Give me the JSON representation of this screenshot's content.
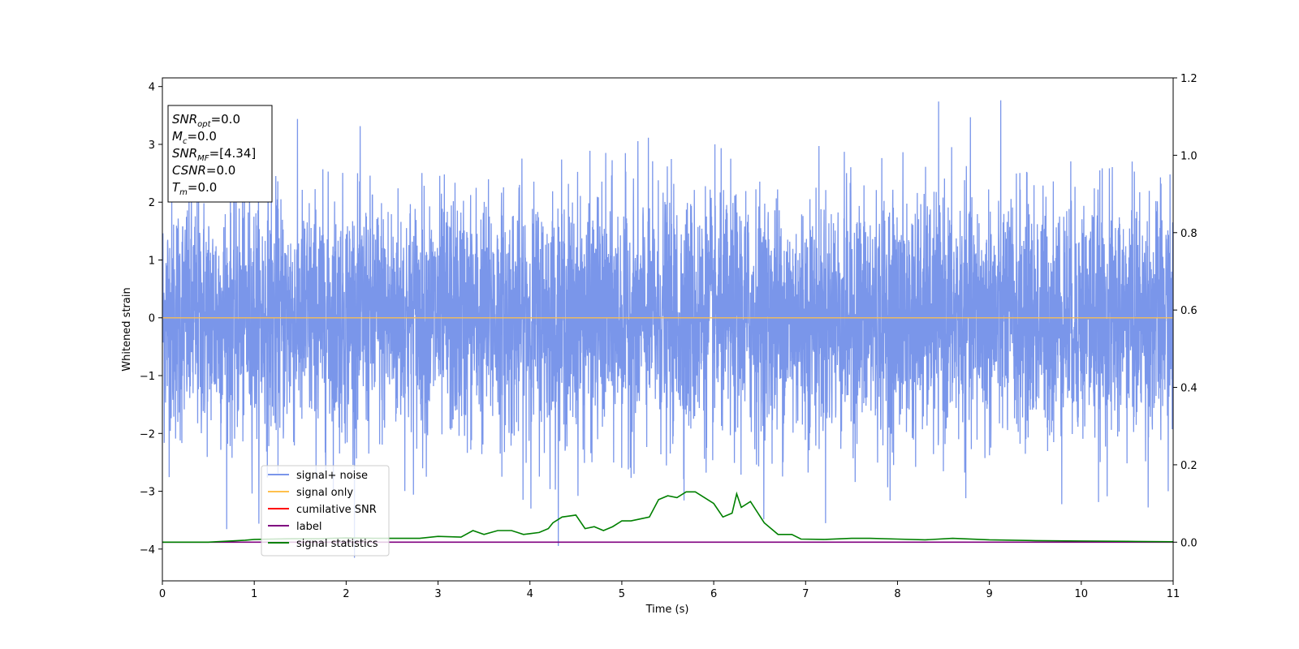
{
  "chart_data": {
    "type": "line",
    "xlabel": "Time (s)",
    "ylabel": "Whitened strain",
    "xlim": [
      0,
      11
    ],
    "ylim": [
      -4.55,
      4.15
    ],
    "y2lim": [
      -0.1,
      1.2
    ],
    "x_ticks": [
      "0",
      "1",
      "2",
      "3",
      "4",
      "5",
      "6",
      "7",
      "8",
      "9",
      "10",
      "11"
    ],
    "y_ticks": [
      "4",
      "3",
      "2",
      "1",
      "0",
      "−1",
      "−2",
      "−3",
      "−4"
    ],
    "y2_ticks": [
      "1.2",
      "1.0",
      "0.8",
      "0.6",
      "0.4",
      "0.2",
      "0.0"
    ],
    "grid": false,
    "legend_position": "lower-left",
    "legend": [
      {
        "label": "signal+ noise",
        "color": "#4169e1"
      },
      {
        "label": "signal only",
        "color": "#ffc04c"
      },
      {
        "label": "cumilative SNR",
        "color": "#ff0000"
      },
      {
        "label": "label",
        "color": "#800080"
      },
      {
        "label": "signal statistics",
        "color": "#008000"
      }
    ],
    "info_box": {
      "lines": [
        {
          "var": "SNR",
          "sub": "opt",
          "value": "=0.0"
        },
        {
          "var": "M",
          "sub": "c",
          "value": "=0.0"
        },
        {
          "var": "SNR",
          "sub": "MF",
          "value": "=[4.34]"
        },
        {
          "var": "CSNR",
          "sub": "",
          "value": "=0.0"
        },
        {
          "var": "T",
          "sub": "m",
          "value": "=0.0"
        }
      ]
    },
    "series": [
      {
        "name": "signal+ noise",
        "axis": "left",
        "color": "#4169e1",
        "description": "noise",
        "envelope_max": 3.77,
        "envelope_min": -4.15
      },
      {
        "name": "signal only",
        "axis": "left",
        "color": "#ffc04c",
        "x": [
          0,
          11
        ],
        "y": [
          0,
          0
        ]
      },
      {
        "name": "label",
        "axis": "right",
        "color": "#800080",
        "x": [
          0,
          11
        ],
        "y": [
          0,
          0
        ]
      },
      {
        "name": "signal statistics",
        "axis": "right",
        "color": "#008000",
        "x": [
          0,
          0.5,
          0.9,
          1.0,
          1.4,
          1.7,
          2.0,
          2.3,
          2.55,
          2.8,
          3.0,
          3.25,
          3.38,
          3.5,
          3.65,
          3.8,
          3.93,
          4.0,
          4.1,
          4.2,
          4.25,
          4.35,
          4.5,
          4.6,
          4.7,
          4.8,
          4.9,
          5.0,
          5.1,
          5.2,
          5.3,
          5.4,
          5.5,
          5.6,
          5.7,
          5.8,
          5.9,
          6.0,
          6.1,
          6.2,
          6.25,
          6.3,
          6.4,
          6.55,
          6.7,
          6.85,
          6.95,
          7.2,
          7.5,
          7.7,
          8.0,
          8.3,
          8.6,
          9.0,
          9.5,
          10.0,
          10.5,
          11.0
        ],
        "y": [
          0.0,
          0.0,
          0.005,
          0.007,
          0.009,
          0.009,
          0.011,
          0.01,
          0.01,
          0.01,
          0.015,
          0.013,
          0.03,
          0.02,
          0.03,
          0.03,
          0.02,
          0.022,
          0.025,
          0.035,
          0.05,
          0.065,
          0.07,
          0.035,
          0.04,
          0.03,
          0.04,
          0.055,
          0.055,
          0.06,
          0.065,
          0.11,
          0.12,
          0.115,
          0.13,
          0.13,
          0.115,
          0.1,
          0.065,
          0.075,
          0.125,
          0.09,
          0.105,
          0.05,
          0.02,
          0.02,
          0.008,
          0.007,
          0.01,
          0.01,
          0.008,
          0.006,
          0.01,
          0.006,
          0.004,
          0.003,
          0.002,
          0.001
        ]
      }
    ]
  }
}
